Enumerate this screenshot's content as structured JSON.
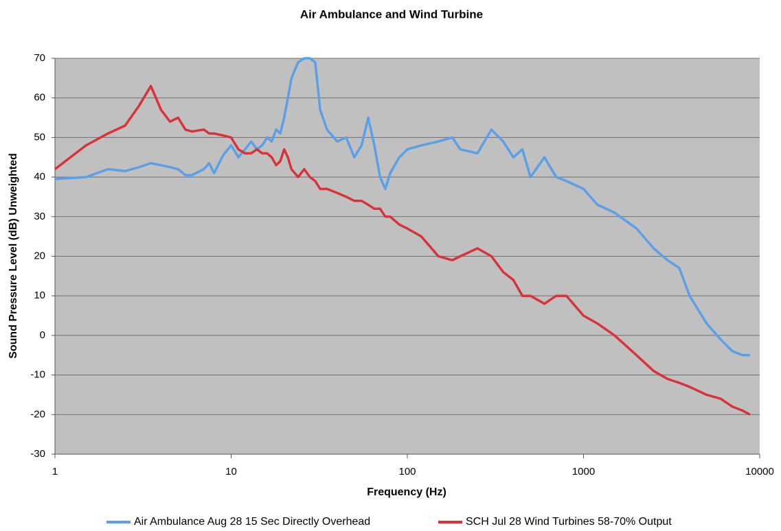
{
  "chart_data": {
    "type": "line",
    "title": "Air Ambulance and Wind Turbine",
    "x_label": "Frequency (Hz)",
    "y_label": "Sound Pressure Level (dB) Unweighted",
    "log_x": true,
    "grid": true,
    "legend": "bottom",
    "xlim": [
      1,
      10000
    ],
    "xticks": [
      1,
      10,
      100,
      1000,
      10000
    ],
    "ylim": [
      -30,
      70
    ],
    "yticks": [
      -30,
      -20,
      -10,
      0,
      10,
      20,
      30,
      40,
      50,
      60,
      70
    ],
    "x": [
      1,
      1.5,
      2,
      2.5,
      3,
      3.5,
      4,
      4.5,
      5,
      5.5,
      6,
      7,
      7.5,
      8,
      9,
      10,
      11,
      12,
      13,
      14,
      15,
      16,
      17,
      18,
      19,
      20,
      21,
      22,
      24,
      26,
      28,
      30,
      32,
      35,
      40,
      45,
      50,
      55,
      60,
      65,
      70,
      75,
      80,
      90,
      100,
      120,
      150,
      180,
      200,
      250,
      300,
      350,
      400,
      450,
      500,
      600,
      700,
      800,
      1000,
      1200,
      1500,
      2000,
      2500,
      3000,
      3500,
      4000,
      5000,
      6000,
      7000,
      8000,
      8800
    ],
    "series": [
      {
        "name": "Air Ambulance Aug 28 15 Sec Directly Overhead",
        "color": "#5aa0e8",
        "values": [
          39.5,
          40,
          42,
          41.5,
          42.5,
          43.5,
          43,
          42.5,
          42,
          40.5,
          40.5,
          42,
          43.5,
          41,
          45.5,
          48,
          45,
          47,
          49,
          47,
          48,
          50,
          49,
          52,
          51,
          55,
          60,
          65,
          69,
          70,
          70,
          69,
          57,
          52,
          49,
          50,
          45,
          48,
          55,
          48,
          40,
          37,
          41,
          45,
          47,
          48,
          49,
          50,
          47,
          46,
          52,
          49,
          45,
          47,
          40,
          45,
          40,
          39,
          37,
          33,
          31,
          27,
          22,
          19,
          17,
          10,
          3,
          -1,
          -4,
          -5,
          -5
        ]
      },
      {
        "name": "SCH Jul 28 Wind Turbines 58-70% Output",
        "color": "#d9333a",
        "values": [
          42,
          48,
          51,
          53,
          58,
          63,
          57,
          54,
          55,
          52,
          51.5,
          52,
          51,
          51,
          50.5,
          50,
          47,
          46,
          46,
          47,
          46,
          46,
          45,
          43,
          44,
          47,
          45,
          42,
          40,
          42,
          40,
          39,
          37,
          37,
          36,
          35,
          34,
          34,
          33,
          32,
          32,
          30,
          30,
          28,
          27,
          25,
          20,
          19,
          20,
          22,
          20,
          16,
          14,
          10,
          10,
          8,
          10,
          10,
          5,
          3,
          0,
          -5,
          -9,
          -11,
          -12,
          -13,
          -15,
          -16,
          -18,
          -19,
          -20
        ]
      }
    ]
  }
}
